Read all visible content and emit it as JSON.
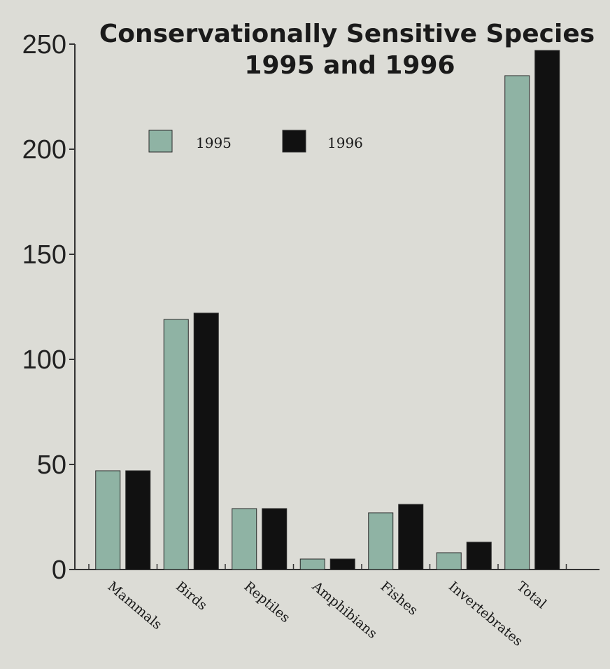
{
  "chart_data": {
    "type": "bar",
    "title_lines": [
      "Conservationally Sensitive Species",
      "1995 and 1996"
    ],
    "categories": [
      "Mammals",
      "Birds",
      "Reptiles",
      "Amphibians",
      "Fishes",
      "Invertebrates",
      "Total"
    ],
    "series": [
      {
        "name": "1995",
        "color": "#8fb3a4",
        "values": [
          47,
          119,
          29,
          5,
          27,
          8,
          235
        ]
      },
      {
        "name": "1996",
        "color": "#111111",
        "values": [
          47,
          122,
          29,
          5,
          31,
          13,
          247
        ]
      }
    ],
    "ylim": [
      0,
      250
    ],
    "yticks": [
      0,
      50,
      100,
      150,
      200,
      250
    ],
    "xlabel": "",
    "ylabel": "",
    "grid": false,
    "legend_position": "top-left"
  }
}
